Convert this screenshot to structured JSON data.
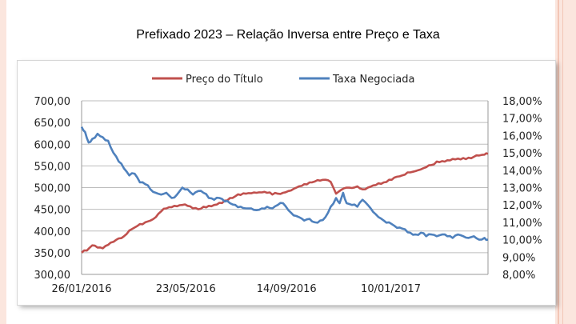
{
  "slide": {
    "title": "Prefixado 2023 – Relação Inversa entre Preço e Taxa"
  },
  "chart_data": {
    "type": "line",
    "title": "",
    "legend_position": "top",
    "x_tick_labels": [
      "26/01/2016",
      "23/05/2016",
      "14/09/2016",
      "10/01/2017"
    ],
    "x_ticks": [
      0,
      118,
      232,
      350
    ],
    "x_range": [
      0,
      460
    ],
    "y_left": {
      "min": 300,
      "max": 700,
      "tick_labels": [
        "700,00",
        "650,00",
        "600,00",
        "550,00",
        "500,00",
        "450,00",
        "400,00",
        "350,00",
        "300,00"
      ],
      "ticks": [
        700,
        650,
        600,
        550,
        500,
        450,
        400,
        350,
        300
      ]
    },
    "y_right": {
      "min": 8,
      "max": 18,
      "tick_labels": [
        "18,00%",
        "17,00%",
        "16,00%",
        "15,00%",
        "14,00%",
        "13,00%",
        "12,00%",
        "11,00%",
        "10,00%",
        "9,00%",
        "8,00%"
      ],
      "ticks": [
        18,
        17,
        16,
        15,
        14,
        13,
        12,
        11,
        10,
        9,
        8
      ]
    },
    "gridlines": "horizontal",
    "series": [
      {
        "name": "Preço do Título",
        "axis": "left",
        "color": "#c0504d",
        "x": [
          0,
          6,
          12,
          18,
          24,
          30,
          36,
          42,
          48,
          54,
          60,
          66,
          72,
          78,
          84,
          90,
          96,
          102,
          108,
          114,
          120,
          126,
          132,
          138,
          144,
          150,
          156,
          162,
          168,
          174,
          180,
          186,
          192,
          198,
          204,
          210,
          216,
          222,
          228,
          234,
          240,
          246,
          252,
          258,
          264,
          270,
          276,
          282,
          288,
          294,
          300,
          306,
          312,
          318,
          324,
          330,
          336,
          342,
          348,
          354,
          360,
          366,
          372,
          378,
          384,
          390,
          396,
          402,
          408,
          414,
          420,
          426,
          432,
          438,
          444,
          450,
          456,
          460
        ],
        "values": [
          350,
          355,
          367,
          362,
          360,
          368,
          375,
          383,
          388,
          401,
          408,
          416,
          420,
          424,
          432,
          445,
          452,
          455,
          457,
          460,
          458,
          452,
          450,
          456,
          458,
          460,
          465,
          470,
          476,
          480,
          483,
          486,
          487,
          488,
          489,
          488,
          484,
          486,
          488,
          492,
          497,
          503,
          508,
          512,
          514,
          516,
          518,
          513,
          486,
          495,
          500,
          499,
          503,
          496,
          500,
          505,
          510,
          512,
          518,
          523,
          526,
          530,
          535,
          538,
          542,
          547,
          552,
          560,
          561,
          563,
          566,
          567,
          568,
          569,
          571,
          574,
          576,
          578
        ]
      },
      {
        "name": "Taxa Negociada",
        "axis": "right",
        "color": "#4f81bd",
        "x": [
          0,
          4,
          8,
          12,
          18,
          24,
          30,
          36,
          42,
          48,
          54,
          60,
          66,
          72,
          78,
          84,
          90,
          96,
          102,
          108,
          114,
          120,
          126,
          132,
          138,
          144,
          150,
          156,
          162,
          168,
          174,
          180,
          186,
          192,
          198,
          204,
          210,
          216,
          222,
          228,
          234,
          240,
          246,
          252,
          258,
          264,
          270,
          276,
          282,
          288,
          292,
          296,
          300,
          306,
          312,
          318,
          324,
          330,
          336,
          342,
          348,
          354,
          360,
          366,
          372,
          378,
          384,
          390,
          396,
          402,
          408,
          414,
          420,
          426,
          432,
          438,
          444,
          450,
          456,
          460
        ],
        "values": [
          16.5,
          16.2,
          15.6,
          15.8,
          16.1,
          15.9,
          15.7,
          15.0,
          14.5,
          14.1,
          13.7,
          13.8,
          13.3,
          13.2,
          12.9,
          12.7,
          12.6,
          12.7,
          12.4,
          12.6,
          13.0,
          12.9,
          12.6,
          12.8,
          12.7,
          12.4,
          12.3,
          12.4,
          12.2,
          12.1,
          12.0,
          11.9,
          11.8,
          11.8,
          11.7,
          11.8,
          11.9,
          11.8,
          12.0,
          12.1,
          11.7,
          11.4,
          11.3,
          11.1,
          11.2,
          11.0,
          11.1,
          11.3,
          11.9,
          12.4,
          12.1,
          12.7,
          12.1,
          12.0,
          11.9,
          12.3,
          12.0,
          11.6,
          11.3,
          11.1,
          11.0,
          10.8,
          10.7,
          10.6,
          10.4,
          10.3,
          10.4,
          10.2,
          10.3,
          10.2,
          10.3,
          10.2,
          10.1,
          10.3,
          10.2,
          10.1,
          10.2,
          10.0,
          10.1,
          10.0
        ]
      }
    ]
  }
}
